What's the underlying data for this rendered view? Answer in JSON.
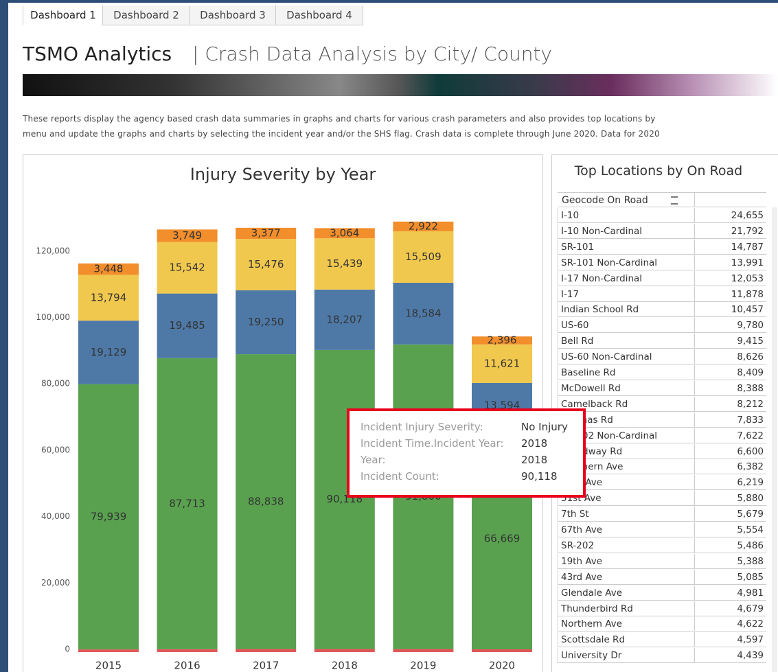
{
  "tabs": [
    "Dashboard 1",
    "Dashboard 2",
    "Dashboard 3",
    "Dashboard 4"
  ],
  "header": {
    "title": "TSMO Analytics",
    "subtitle": "| Crash Data Analysis by City/ County",
    "description": [
      "These reports display the agency based crash data summaries in graphs and charts for various crash parameters and also provides top locations by",
      "menu and update the graphs and charts by selecting the incident year and/or the SHS flag. Crash data is complete through June 2020.  Data for 2020"
    ]
  },
  "chart_data": {
    "type": "bar",
    "stacked": true,
    "title": "Injury Severity by Year",
    "categories": [
      "2015",
      "2016",
      "2017",
      "2018",
      "2019",
      "2020"
    ],
    "series": [
      {
        "color": "#e15759",
        "values": [
          811,
          856,
          917,
          918,
          909,
          831
        ]
      },
      {
        "color": "#59a14f",
        "values": [
          79939,
          87713,
          88838,
          90118,
          91800,
          66669
        ],
        "value_labels": [
          "79,939",
          "87,713",
          "88,838",
          "90,118",
          "91,800",
          "66,669"
        ]
      },
      {
        "color": "#4e79a7",
        "values": [
          19129,
          19485,
          19250,
          18207,
          18584,
          13594
        ],
        "value_labels": [
          "19,129",
          "19,485",
          "19,250",
          "18,207",
          "18,584",
          "13,594"
        ]
      },
      {
        "color": "#f1c84e",
        "values": [
          13794,
          15542,
          15476,
          15439,
          15509,
          11621
        ],
        "value_labels": [
          "13,794",
          "15,542",
          "15,476",
          "15,439",
          "15,509",
          "11,621"
        ]
      },
      {
        "color": "#f28e2b",
        "values": [
          3448,
          3749,
          3377,
          3064,
          2922,
          2396
        ],
        "value_labels": [
          "3,448",
          "3,749",
          "3,377",
          "3,064",
          "2,922",
          "2,396"
        ]
      }
    ],
    "ylim": [
      0,
      133000
    ],
    "yticks": [
      0,
      {
        "value": 20000,
        "label": "20,000"
      },
      {
        "value": 40000,
        "label": "40,000"
      },
      {
        "value": 60000,
        "label": "60,000"
      },
      {
        "value": 80000,
        "label": "80,000"
      },
      {
        "value": 100000,
        "label": "100,000"
      },
      {
        "value": 120000,
        "label": "120,000"
      }
    ],
    "grid": false
  },
  "tooltip": {
    "rows": [
      {
        "label": "Incident Injury Severity:",
        "value": "No Injury"
      },
      {
        "label": "Incident Time.Incident Year:",
        "value": "2018"
      },
      {
        "label": "Year:",
        "value": "2018"
      },
      {
        "label": "Incident Count:",
        "value": "90,118"
      }
    ]
  },
  "table": {
    "title": "Top Locations by On Road",
    "header": "Geocode On Road",
    "rows": [
      [
        "I-10",
        "24,655"
      ],
      [
        "I-10 Non-Cardinal",
        "21,792"
      ],
      [
        "SR-101",
        "14,787"
      ],
      [
        "SR-101 Non-Cardinal",
        "13,991"
      ],
      [
        "I-17 Non-Cardinal",
        "12,053"
      ],
      [
        "I-17",
        "11,878"
      ],
      [
        "Indian School Rd",
        "10,457"
      ],
      [
        "US-60",
        "9,780"
      ],
      [
        "Bell Rd",
        "9,415"
      ],
      [
        "US-60 Non-Cardinal",
        "8,626"
      ],
      [
        "Baseline Rd",
        "8,409"
      ],
      [
        "McDowell Rd",
        "8,388"
      ],
      [
        "Camelback Rd",
        "8,212"
      ],
      [
        "Thomas Rd",
        "7,833"
      ],
      [
        "SR-202 Non-Cardinal",
        "7,622"
      ],
      [
        "Broadway Rd",
        "6,600"
      ],
      [
        "Southern Ave",
        "6,382"
      ],
      [
        "35th Ave",
        "6,219"
      ],
      [
        "51st Ave",
        "5,880"
      ],
      [
        "7th St",
        "5,679"
      ],
      [
        "67th Ave",
        "5,554"
      ],
      [
        "SR-202",
        "5,486"
      ],
      [
        "19th Ave",
        "5,388"
      ],
      [
        "43rd Ave",
        "5,085"
      ],
      [
        "Glendale Ave",
        "4,981"
      ],
      [
        "Thunderbird Rd",
        "4,679"
      ],
      [
        "Northern Ave",
        "4,622"
      ],
      [
        "Scottsdale Rd",
        "4,597"
      ],
      [
        "University Dr",
        "4,439"
      ]
    ]
  }
}
